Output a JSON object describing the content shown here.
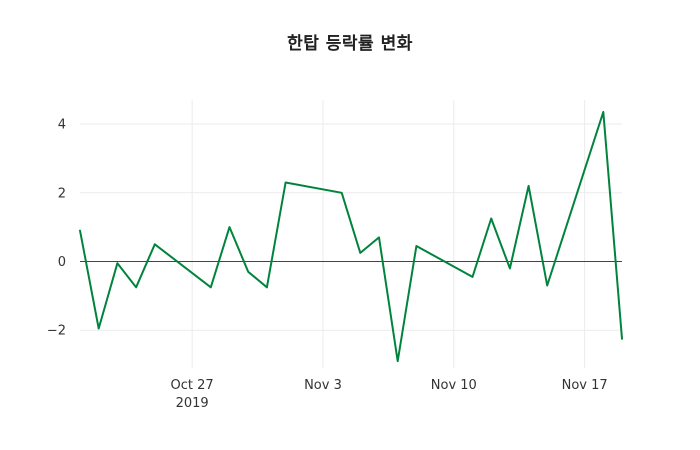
{
  "figure": {
    "title": "한탑 등락률 변화",
    "background": "#ffffff"
  },
  "chart_data": {
    "type": "line",
    "title": "한탑 등락률 변화",
    "xlabel": "",
    "ylabel": "",
    "legend_position": "none",
    "grid": true,
    "line_color": "#00843d",
    "grid_color": "#ebebeb",
    "zero_line_color": "#444444",
    "tick_color": "#333333",
    "x": [
      "2019-10-21",
      "2019-10-22",
      "2019-10-23",
      "2019-10-24",
      "2019-10-25",
      "2019-10-28",
      "2019-10-29",
      "2019-10-30",
      "2019-10-31",
      "2019-11-01",
      "2019-11-04",
      "2019-11-05",
      "2019-11-06",
      "2019-11-07",
      "2019-11-08",
      "2019-11-11",
      "2019-11-12",
      "2019-11-13",
      "2019-11-14",
      "2019-11-15",
      "2019-11-18",
      "2019-11-19"
    ],
    "y": [
      0.9,
      -1.95,
      -0.05,
      -0.75,
      0.5,
      -0.75,
      1.0,
      -0.3,
      -0.75,
      2.3,
      2.0,
      0.25,
      0.7,
      -2.9,
      0.45,
      -0.45,
      1.25,
      -0.2,
      2.2,
      -0.7,
      4.35,
      -2.25
    ],
    "xlim": [
      "2019-10-21",
      "2019-11-19"
    ],
    "ylim": [
      -3.1,
      4.7
    ],
    "y_ticks": [
      {
        "value": -2,
        "label": "−2"
      },
      {
        "value": 0,
        "label": "0"
      },
      {
        "value": 2,
        "label": "2"
      },
      {
        "value": 4,
        "label": "4"
      }
    ],
    "x_ticks": [
      {
        "date": "2019-10-27",
        "label": "Oct 27",
        "sublabel": "2019"
      },
      {
        "date": "2019-11-03",
        "label": "Nov 3",
        "sublabel": ""
      },
      {
        "date": "2019-11-10",
        "label": "Nov 10",
        "sublabel": ""
      },
      {
        "date": "2019-11-17",
        "label": "Nov 17",
        "sublabel": ""
      }
    ]
  }
}
